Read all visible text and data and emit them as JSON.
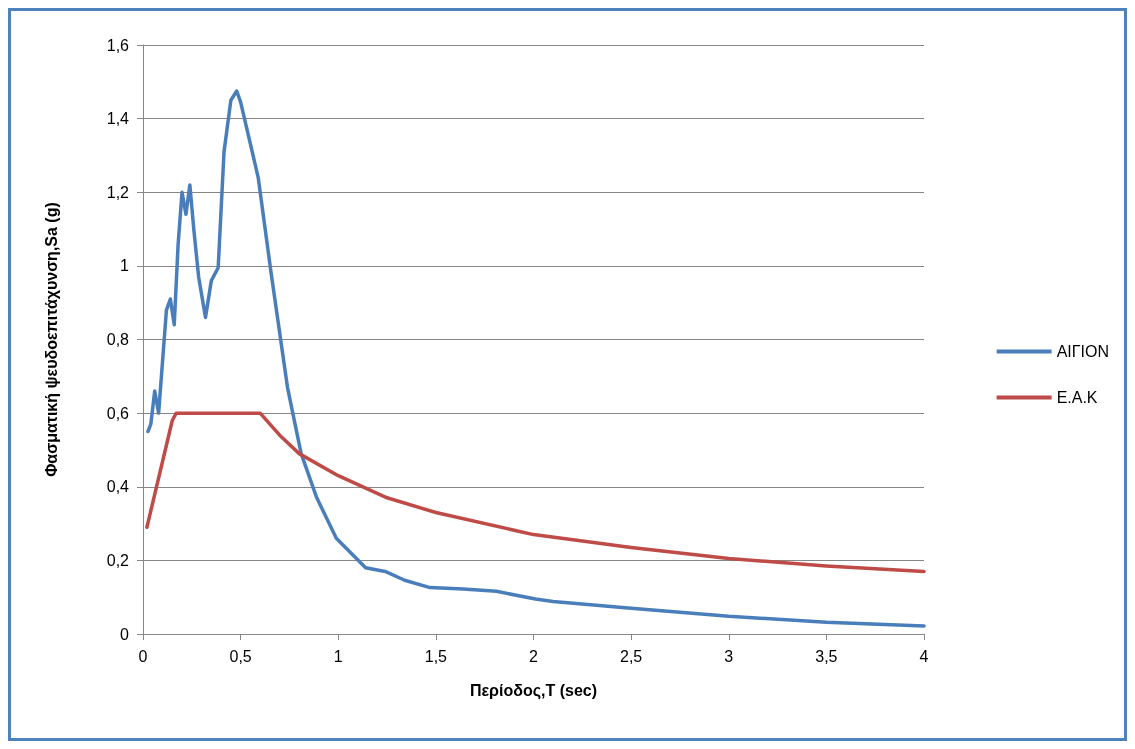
{
  "chart_data": {
    "type": "line",
    "xlabel": "Περίοδος,T (sec)",
    "ylabel": "Φασματική ψευδοεπιτάχυνση,Sa (g)",
    "xlim": [
      0,
      4
    ],
    "ylim": [
      0,
      1.6
    ],
    "xticks": [
      0,
      {
        "value": 0.5,
        "label": "0,5"
      },
      1,
      {
        "value": 1.5,
        "label": "1,5"
      },
      2,
      {
        "value": 2.5,
        "label": "2,5"
      },
      3,
      {
        "value": 3.5,
        "label": "3,5"
      },
      4
    ],
    "yticks": [
      0,
      {
        "value": 0.2,
        "label": "0,2"
      },
      {
        "value": 0.4,
        "label": "0,4"
      },
      {
        "value": 0.6,
        "label": "0,6"
      },
      {
        "value": 0.8,
        "label": "0,8"
      },
      1,
      {
        "value": 1.2,
        "label": "1,2"
      },
      {
        "value": 1.4,
        "label": "1,4"
      },
      {
        "value": 1.6,
        "label": "1,6"
      }
    ],
    "grid": "y",
    "legend": "right",
    "marker": "none",
    "line_style": "solid",
    "series": [
      {
        "name": "ΑΙΓΙΟΝ",
        "color": "#4a7ebb",
        "x": [
          0.025,
          0.04,
          0.06,
          0.08,
          0.12,
          0.14,
          0.16,
          0.18,
          0.2,
          0.22,
          0.24,
          0.26,
          0.285,
          0.32,
          0.35,
          0.385,
          0.415,
          0.45,
          0.48,
          0.5,
          0.59,
          0.655,
          0.74,
          0.81,
          0.89,
          0.99,
          1.14,
          1.24,
          1.34,
          1.47,
          1.64,
          1.81,
          2.01,
          2.1,
          2.5,
          3,
          3.5,
          4
        ],
        "values": [
          0.55,
          0.57,
          0.66,
          0.6,
          0.88,
          0.91,
          0.84,
          1.06,
          1.2,
          1.14,
          1.22,
          1.1,
          0.97,
          0.86,
          0.96,
          0.995,
          1.31,
          1.45,
          1.475,
          1.445,
          1.24,
          0.985,
          0.67,
          0.49,
          0.37,
          0.26,
          0.18,
          0.17,
          0.146,
          0.126,
          0.122,
          0.116,
          0.095,
          0.088,
          0.07,
          0.048,
          0.032,
          0.022
        ]
      },
      {
        "name": "Ε.Α.Κ",
        "color": "#be4b48",
        "x": [
          0.02,
          0.15,
          0.17,
          0.6,
          0.7,
          0.8,
          1,
          1.25,
          1.5,
          2,
          2.5,
          3,
          3.5,
          4
        ],
        "values": [
          0.29,
          0.58,
          0.6,
          0.6,
          0.54,
          0.49,
          0.43,
          0.37,
          0.33,
          0.27,
          0.235,
          0.205,
          0.185,
          0.17
        ]
      }
    ]
  }
}
